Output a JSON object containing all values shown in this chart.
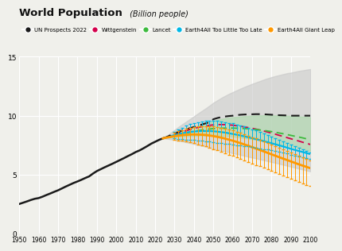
{
  "title": "World Population",
  "title_sub": " (Billion people)",
  "bg_color": "#f0f0eb",
  "grid_color": "#ffffff",
  "years_hist": [
    1950,
    1952,
    1954,
    1956,
    1958,
    1960,
    1962,
    1964,
    1966,
    1968,
    1970,
    1972,
    1974,
    1976,
    1978,
    1980,
    1982,
    1984,
    1986,
    1988,
    1990,
    1992,
    1994,
    1996,
    1998,
    2000,
    2002,
    2004,
    2006,
    2008,
    2010,
    2012,
    2014,
    2016,
    2018,
    2020,
    2022,
    2024
  ],
  "pop_hist": [
    2.52,
    2.63,
    2.74,
    2.86,
    2.96,
    3.02,
    3.14,
    3.28,
    3.41,
    3.55,
    3.68,
    3.84,
    4.0,
    4.15,
    4.3,
    4.43,
    4.57,
    4.72,
    4.86,
    5.1,
    5.31,
    5.47,
    5.63,
    5.78,
    5.93,
    6.09,
    6.25,
    6.41,
    6.58,
    6.74,
    6.92,
    7.06,
    7.24,
    7.43,
    7.63,
    7.79,
    7.95,
    8.08
  ],
  "years_fut": [
    2024,
    2026,
    2028,
    2030,
    2032,
    2034,
    2036,
    2038,
    2040,
    2042,
    2044,
    2046,
    2048,
    2050,
    2052,
    2054,
    2056,
    2058,
    2060,
    2062,
    2064,
    2066,
    2068,
    2070,
    2072,
    2074,
    2076,
    2078,
    2080,
    2082,
    2084,
    2086,
    2088,
    2090,
    2092,
    2094,
    2096,
    2098,
    2100
  ],
  "un_med": [
    8.08,
    8.2,
    8.35,
    8.5,
    8.63,
    8.75,
    8.85,
    8.95,
    9.05,
    9.15,
    9.25,
    9.35,
    9.45,
    9.7,
    9.8,
    9.88,
    9.93,
    9.97,
    10.0,
    10.05,
    10.08,
    10.1,
    10.12,
    10.12,
    10.13,
    10.13,
    10.12,
    10.1,
    10.08,
    10.06,
    10.04,
    10.03,
    10.02,
    10.0,
    10.0,
    10.0,
    10.0,
    10.0,
    10.0
  ],
  "un_high": [
    8.08,
    8.3,
    8.55,
    8.8,
    9.05,
    9.28,
    9.5,
    9.72,
    9.95,
    10.18,
    10.4,
    10.62,
    10.85,
    11.1,
    11.3,
    11.5,
    11.68,
    11.85,
    12.0,
    12.15,
    12.3,
    12.44,
    12.57,
    12.7,
    12.82,
    12.94,
    13.06,
    13.17,
    13.27,
    13.36,
    13.44,
    13.52,
    13.6,
    13.65,
    13.72,
    13.79,
    13.84,
    13.9,
    13.95
  ],
  "un_low": [
    8.08,
    8.05,
    8.0,
    7.95,
    7.88,
    7.82,
    7.75,
    7.68,
    7.6,
    7.53,
    7.45,
    7.38,
    7.3,
    7.2,
    7.12,
    7.05,
    6.97,
    6.9,
    6.82,
    6.75,
    6.67,
    6.6,
    6.52,
    6.45,
    6.38,
    6.3,
    6.23,
    6.15,
    6.07,
    6.0,
    5.92,
    5.84,
    5.76,
    5.68,
    5.6,
    5.52,
    5.44,
    5.36,
    5.28
  ],
  "lancet_hi": [
    8.08,
    8.2,
    8.32,
    8.45,
    8.57,
    8.68,
    8.8,
    8.92,
    9.04,
    9.16,
    9.27,
    9.38,
    9.48,
    9.57,
    9.65,
    9.72,
    9.78,
    9.83,
    9.87,
    9.9,
    9.93,
    9.96,
    9.98,
    10.0,
    10.01,
    10.02,
    10.03,
    10.03,
    10.03,
    10.02,
    10.01,
    10.0,
    9.99,
    9.97,
    9.96,
    9.94,
    9.92,
    9.9,
    9.87
  ],
  "lancet_lo": [
    8.08,
    8.12,
    8.15,
    8.18,
    8.2,
    8.22,
    8.24,
    8.26,
    8.28,
    8.3,
    8.32,
    8.33,
    8.33,
    8.33,
    8.32,
    8.3,
    8.28,
    8.25,
    8.22,
    8.18,
    8.14,
    8.1,
    8.05,
    8.0,
    7.95,
    7.9,
    7.84,
    7.78,
    7.72,
    7.66,
    7.6,
    7.53,
    7.46,
    7.39,
    7.32,
    7.24,
    7.17,
    7.09,
    7.01
  ],
  "wittgenstein": [
    8.08,
    8.18,
    8.28,
    8.4,
    8.52,
    8.63,
    8.73,
    8.83,
    8.92,
    9.0,
    9.07,
    9.13,
    9.18,
    9.22,
    9.24,
    9.25,
    9.24,
    9.22,
    9.19,
    9.15,
    9.1,
    9.05,
    8.99,
    8.93,
    8.86,
    8.78,
    8.7,
    8.61,
    8.52,
    8.43,
    8.33,
    8.24,
    8.14,
    8.04,
    7.95,
    7.85,
    7.75,
    7.66,
    7.56
  ],
  "lancet": [
    8.08,
    8.16,
    8.24,
    8.32,
    8.4,
    8.47,
    8.54,
    8.61,
    8.67,
    8.73,
    8.78,
    8.83,
    8.87,
    8.9,
    8.92,
    8.94,
    8.95,
    8.95,
    8.95,
    8.94,
    8.93,
    8.91,
    8.89,
    8.87,
    8.83,
    8.79,
    8.75,
    8.7,
    8.65,
    8.59,
    8.53,
    8.47,
    8.4,
    8.33,
    8.26,
    8.19,
    8.12,
    8.04,
    7.97
  ],
  "e4a_tltl": [
    8.08,
    8.18,
    8.27,
    8.36,
    8.44,
    8.51,
    8.57,
    8.62,
    8.66,
    8.68,
    8.7,
    8.7,
    8.7,
    8.68,
    8.65,
    8.61,
    8.57,
    8.51,
    8.45,
    8.39,
    8.32,
    8.25,
    8.17,
    8.09,
    8.01,
    7.93,
    7.84,
    7.75,
    7.66,
    7.57,
    7.48,
    7.39,
    7.29,
    7.19,
    7.1,
    7.01,
    6.92,
    6.83,
    6.74
  ],
  "e4a_tltl_hi": [
    8.08,
    8.28,
    8.47,
    8.66,
    8.84,
    9.0,
    9.14,
    9.27,
    9.38,
    9.46,
    9.52,
    9.56,
    9.58,
    9.57,
    9.55,
    9.52,
    9.47,
    9.4,
    9.34,
    9.25,
    9.17,
    9.07,
    8.97,
    8.86,
    8.75,
    8.63,
    8.51,
    8.38,
    8.25,
    8.11,
    7.97,
    7.83,
    7.69,
    7.54,
    7.4,
    7.26,
    7.12,
    6.99,
    6.85
  ],
  "e4a_tltl_lo": [
    8.08,
    8.08,
    8.07,
    8.06,
    8.04,
    8.02,
    7.99,
    7.97,
    7.94,
    7.9,
    7.87,
    7.83,
    7.79,
    7.75,
    7.71,
    7.67,
    7.63,
    7.59,
    7.55,
    7.51,
    7.47,
    7.43,
    7.39,
    7.34,
    7.29,
    7.24,
    7.18,
    7.12,
    7.06,
    6.99,
    6.92,
    6.85,
    6.78,
    6.71,
    6.64,
    6.57,
    6.5,
    6.43,
    6.36
  ],
  "e4a_gl": [
    8.08,
    8.15,
    8.21,
    8.26,
    8.31,
    8.35,
    8.38,
    8.4,
    8.41,
    8.4,
    8.39,
    8.36,
    8.32,
    8.27,
    8.21,
    8.14,
    8.06,
    7.97,
    7.88,
    7.78,
    7.67,
    7.56,
    7.45,
    7.33,
    7.21,
    7.09,
    6.97,
    6.85,
    6.72,
    6.6,
    6.48,
    6.36,
    6.24,
    6.12,
    6.0,
    5.88,
    5.77,
    5.66,
    5.55
  ],
  "e4a_gl_hi": [
    8.08,
    8.25,
    8.4,
    8.55,
    8.68,
    8.79,
    8.89,
    8.97,
    9.04,
    9.09,
    9.12,
    9.13,
    9.12,
    9.09,
    9.05,
    8.99,
    8.92,
    8.84,
    8.75,
    8.65,
    8.54,
    8.43,
    8.31,
    8.19,
    8.06,
    7.94,
    7.81,
    7.68,
    7.55,
    7.41,
    7.28,
    7.15,
    7.02,
    6.88,
    6.75,
    6.62,
    6.49,
    6.36,
    6.24
  ],
  "e4a_gl_lo": [
    8.08,
    8.05,
    8.02,
    7.97,
    7.92,
    7.87,
    7.81,
    7.74,
    7.66,
    7.58,
    7.49,
    7.39,
    7.29,
    7.18,
    7.06,
    6.94,
    6.82,
    6.7,
    6.58,
    6.46,
    6.34,
    6.21,
    6.09,
    5.96,
    5.83,
    5.71,
    5.58,
    5.45,
    5.32,
    5.19,
    5.06,
    4.93,
    4.8,
    4.67,
    4.54,
    4.41,
    4.28,
    4.15,
    4.02
  ],
  "color_un": "#1a1a1a",
  "color_wittgenstein": "#d4004a",
  "color_lancet": "#3dba3d",
  "color_e4a_tltl": "#00b8e6",
  "color_e4a_gl": "#ff9900",
  "color_un_band": "#c8c8c8",
  "color_lancet_band": "#a8d8a8",
  "ylim": [
    0,
    15
  ],
  "xlim_start": 1950,
  "xlim_end": 2100,
  "xticks": [
    1950,
    1960,
    1970,
    1980,
    1990,
    2000,
    2010,
    2020,
    2030,
    2040,
    2050,
    2060,
    2070,
    2080,
    2090,
    2100
  ],
  "yticks": [
    0,
    5,
    10,
    15
  ]
}
